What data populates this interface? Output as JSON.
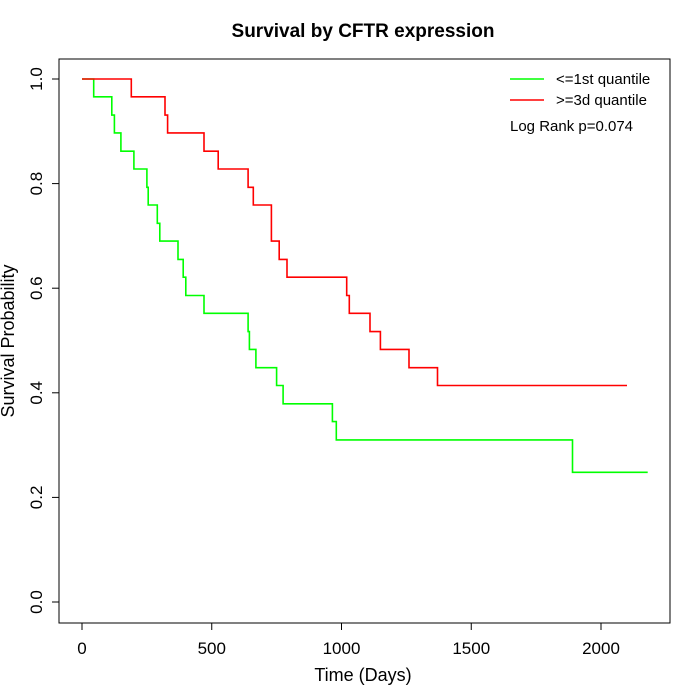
{
  "chart_data": {
    "type": "line",
    "title": "Survival by CFTR expression",
    "xlabel": "Time (Days)",
    "ylabel": "Survival Probability",
    "xlim": [
      0,
      2200
    ],
    "ylim": [
      0,
      1.0
    ],
    "x_ticks": [
      0,
      500,
      1000,
      1500,
      2000
    ],
    "x_tick_labels": [
      "0",
      "500",
      "1000",
      "1500",
      "2000"
    ],
    "y_ticks": [
      0,
      0.2,
      0.4,
      0.6,
      0.8,
      1.0
    ],
    "y_tick_labels": [
      "0.0",
      "0.2",
      "0.4",
      "0.6",
      "0.8",
      "1.0"
    ],
    "grid": false,
    "legend_position": "top-right",
    "annotation": "Log Rank p=0.074",
    "series": [
      {
        "name": "<=1st quantile",
        "color": "#00ff00",
        "step": true,
        "x": [
          0,
          45,
          115,
          125,
          150,
          200,
          250,
          255,
          290,
          300,
          370,
          390,
          400,
          470,
          640,
          645,
          670,
          750,
          775,
          965,
          970,
          980,
          1890,
          2180
        ],
        "y": [
          1.0,
          0.966,
          0.931,
          0.897,
          0.862,
          0.828,
          0.793,
          0.759,
          0.724,
          0.69,
          0.655,
          0.621,
          0.586,
          0.552,
          0.517,
          0.483,
          0.448,
          0.414,
          0.379,
          0.345,
          0.345,
          0.31,
          0.248,
          0.248
        ]
      },
      {
        "name": ">=3d quantile",
        "color": "#ff0000",
        "step": true,
        "x": [
          0,
          190,
          320,
          330,
          470,
          525,
          640,
          660,
          730,
          735,
          760,
          790,
          1020,
          1030,
          1110,
          1150,
          1260,
          1370,
          2100
        ],
        "y": [
          1.0,
          0.966,
          0.931,
          0.897,
          0.862,
          0.828,
          0.793,
          0.759,
          0.69,
          0.69,
          0.655,
          0.621,
          0.586,
          0.552,
          0.517,
          0.483,
          0.448,
          0.414,
          0.414
        ]
      }
    ]
  }
}
